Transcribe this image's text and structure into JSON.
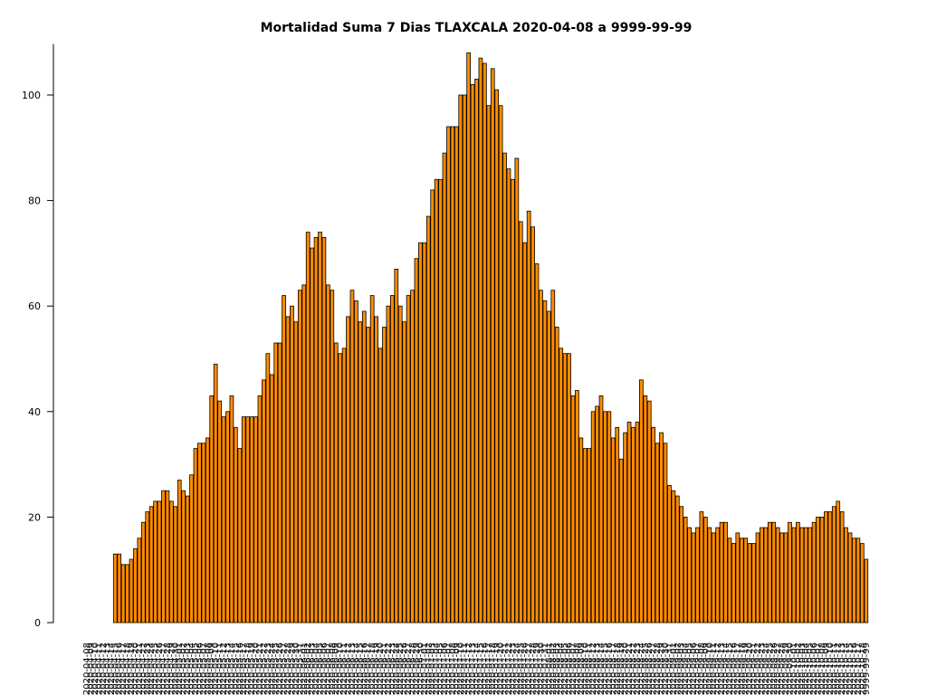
{
  "chart_data": {
    "type": "bar",
    "title": "Mortalidad Suma 7 Dias TLAXCALA 2020-04-08 a 9999-99-99",
    "xlabel": "",
    "ylabel": "",
    "ylim": [
      0,
      110
    ],
    "yticks": [
      0,
      20,
      40,
      60,
      80,
      100
    ],
    "start_date": "2020-04-08",
    "end_label": "9999-99-99",
    "bar_color": "#ff8c00",
    "edge_color": "#000000",
    "grid": false,
    "values": [
      0,
      0,
      0,
      0,
      0,
      0,
      0,
      13,
      13,
      11,
      11,
      12,
      14,
      16,
      19,
      21,
      22,
      23,
      23,
      25,
      25,
      23,
      22,
      27,
      25,
      24,
      28,
      33,
      34,
      34,
      35,
      43,
      49,
      42,
      39,
      40,
      43,
      37,
      33,
      39,
      39,
      39,
      39,
      43,
      46,
      51,
      47,
      53,
      53,
      62,
      58,
      60,
      57,
      63,
      64,
      74,
      71,
      73,
      74,
      73,
      64,
      63,
      53,
      51,
      52,
      58,
      63,
      61,
      57,
      59,
      56,
      62,
      58,
      52,
      56,
      60,
      62,
      67,
      60,
      57,
      62,
      63,
      69,
      72,
      72,
      77,
      82,
      84,
      84,
      89,
      94,
      94,
      94,
      100,
      100,
      108,
      102,
      103,
      107,
      106,
      98,
      105,
      101,
      98,
      89,
      86,
      84,
      88,
      76,
      72,
      78,
      75,
      68,
      63,
      61,
      59,
      63,
      56,
      52,
      51,
      51,
      43,
      44,
      35,
      33,
      33,
      40,
      41,
      43,
      40,
      40,
      35,
      37,
      31,
      36,
      38,
      37,
      38,
      46,
      43,
      42,
      37,
      34,
      36,
      34,
      26,
      25,
      24,
      22,
      20,
      18,
      17,
      18,
      21,
      20,
      18,
      17,
      18,
      19,
      19,
      16,
      15,
      17,
      16,
      16,
      15,
      15,
      17,
      18,
      18,
      19,
      19,
      18,
      17,
      17,
      19,
      18,
      19,
      18,
      18,
      18,
      19,
      20,
      20,
      21,
      21,
      22,
      23,
      21,
      18,
      17,
      16,
      16,
      15,
      12
    ]
  }
}
